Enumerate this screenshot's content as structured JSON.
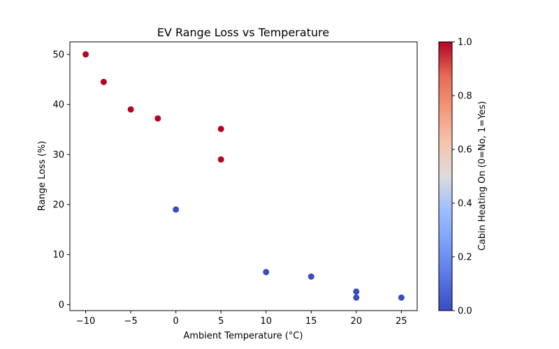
{
  "chart_data": {
    "type": "scatter",
    "title": "EV Range Loss vs Temperature",
    "xlabel": "Ambient Temperature (°C)",
    "ylabel": "Range Loss (%)",
    "xlim": [
      -11.75,
      26.75
    ],
    "ylim": [
      -1.2,
      52.5
    ],
    "xticks": [
      -10,
      -5,
      0,
      5,
      10,
      15,
      20,
      25
    ],
    "xtick_labels": [
      "−10",
      "−5",
      "0",
      "5",
      "10",
      "15",
      "20",
      "25"
    ],
    "yticks": [
      0,
      10,
      20,
      30,
      40,
      50
    ],
    "ytick_labels": [
      "0",
      "10",
      "20",
      "30",
      "40",
      "50"
    ],
    "grid": false,
    "colormap": "coolwarm",
    "colorbar": {
      "label": "Cabin Heating On (0=No, 1=Yes)",
      "range": [
        0,
        1
      ],
      "ticks": [
        0.0,
        0.2,
        0.4,
        0.6,
        0.8,
        1.0
      ],
      "tick_labels": [
        "0.0",
        "0.2",
        "0.4",
        "0.6",
        "0.8",
        "1.0"
      ]
    },
    "colors": {
      "heating_on": "#b40426",
      "heating_off": "#3b4cc0"
    },
    "points": [
      {
        "x": -10,
        "y": 50.0,
        "c": 1
      },
      {
        "x": -8,
        "y": 44.5,
        "c": 1
      },
      {
        "x": -5,
        "y": 39.0,
        "c": 1
      },
      {
        "x": -2,
        "y": 37.2,
        "c": 1
      },
      {
        "x": 5,
        "y": 35.1,
        "c": 1
      },
      {
        "x": 5,
        "y": 29.0,
        "c": 1
      },
      {
        "x": 0,
        "y": 19.0,
        "c": 0
      },
      {
        "x": 10,
        "y": 6.5,
        "c": 0
      },
      {
        "x": 15,
        "y": 5.6,
        "c": 0
      },
      {
        "x": 20,
        "y": 2.6,
        "c": 0
      },
      {
        "x": 20,
        "y": 1.4,
        "c": 0
      },
      {
        "x": 25,
        "y": 1.4,
        "c": 0
      }
    ]
  }
}
